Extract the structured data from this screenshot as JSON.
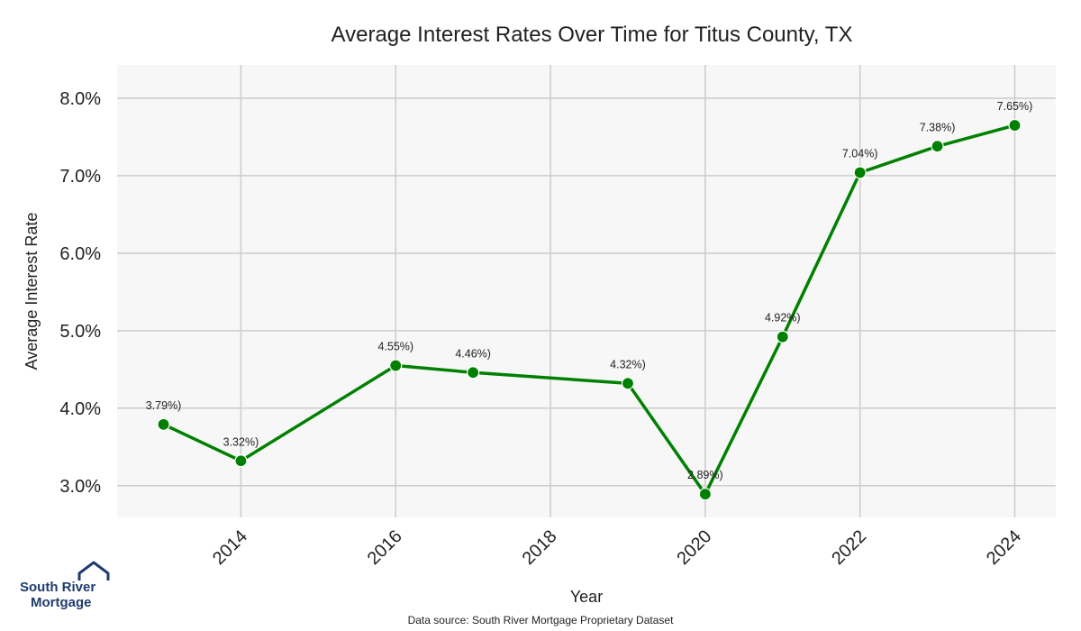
{
  "chart_data": {
    "type": "line",
    "title": "Average Interest Rates Over Time for Titus County, TX",
    "xlabel": "Year",
    "ylabel": "Average Interest Rate",
    "x": [
      2013,
      2014,
      2016,
      2017,
      2019,
      2020,
      2021,
      2022,
      2023,
      2024
    ],
    "series": [
      {
        "values": [
          3.79,
          3.32,
          4.55,
          4.46,
          4.32,
          2.89,
          4.92,
          7.04,
          7.38,
          7.65
        ],
        "point_labels": [
          "3.79%)",
          "3.32%)",
          "4.55%)",
          "4.46%)",
          "4.32%)",
          "2.89%)",
          "4.92%)",
          "7.04%)",
          "7.38%)",
          "7.65%)"
        ],
        "color": "#008000"
      }
    ],
    "xticks": [
      2014,
      2016,
      2018,
      2020,
      2022,
      2024
    ],
    "yticks": [
      3.0,
      4.0,
      5.0,
      6.0,
      7.0,
      8.0
    ],
    "ytick_labels": [
      "3.0%",
      "4.0%",
      "5.0%",
      "6.0%",
      "7.0%",
      "8.0%"
    ],
    "xlim": [
      2012.4,
      2024.53
    ],
    "ylim": [
      2.59,
      8.43
    ],
    "grid": true,
    "plot_background": "#f7f7f7",
    "grid_color": "#cccccc"
  },
  "branding": {
    "logo_line1": "South River",
    "logo_line2": "Mortgage",
    "logo_color": "#1f3b6e"
  },
  "footer": {
    "source": "Data source: South River Mortgage Proprietary Dataset"
  }
}
